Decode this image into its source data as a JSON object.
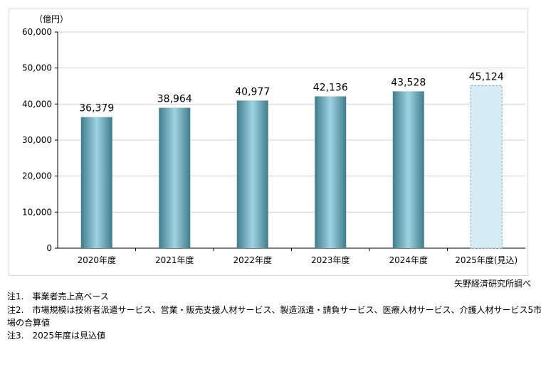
{
  "chart_data": {
    "type": "bar",
    "unit_label": "（億円）",
    "categories": [
      "2020年度",
      "2021年度",
      "2022年度",
      "2023年度",
      "2024年度",
      "2025年度(見込)"
    ],
    "values": [
      36379,
      38964,
      40977,
      42136,
      43528,
      45124
    ],
    "value_labels": [
      "36,379",
      "38,964",
      "40,977",
      "42,136",
      "43,528",
      "45,124"
    ],
    "projected": [
      false,
      false,
      false,
      false,
      false,
      true
    ],
    "ylim": [
      0,
      60000
    ],
    "yticks": [
      0,
      10000,
      20000,
      30000,
      40000,
      50000,
      60000
    ],
    "ytick_labels": [
      "0",
      "10,000",
      "20,000",
      "30,000",
      "40,000",
      "50,000",
      "60,000"
    ],
    "grid": true,
    "colors": {
      "bar_dark": "#3f7d8c",
      "bar_light": "#9fd3e2",
      "projected_fill": "#d7edf5",
      "projected_border": "#7fa8b8"
    }
  },
  "source": "矢野経済研究所調べ",
  "notes": [
    "注1.　事業者売上高ベース",
    "注2.　市場規模は技術者派遣サービス、営業・販売支援人材サービス、製造派遣・請負サービス、医療人材サービス、介護人材サービス5市",
    "場の合算値",
    "注3.　2025年度は見込値"
  ]
}
